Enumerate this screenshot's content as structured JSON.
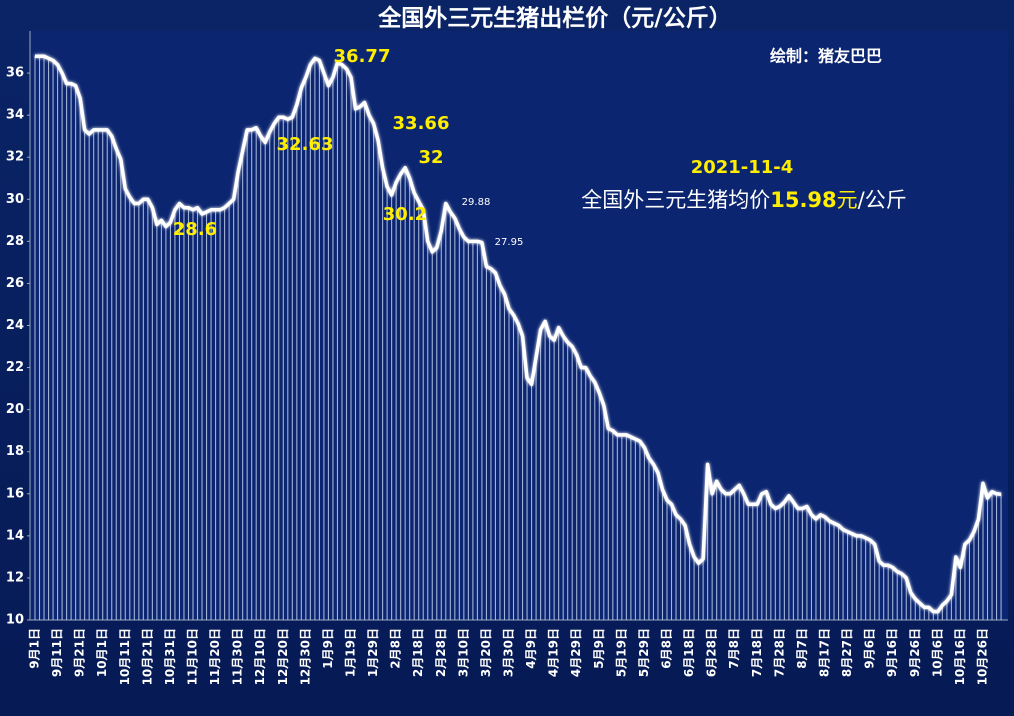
{
  "chart_data": {
    "type": "line",
    "title": "全国外三元生猪出栏价（元/公斤）",
    "credit": "绘制：猪友巴巴",
    "note": {
      "date": "2021-11-4",
      "prefix": "全国外三元生猪均价",
      "price": "15.98",
      "unit": "元",
      "suffix": "/公斤"
    },
    "annotations": [
      "36.77",
      "32.63",
      "33.66",
      "32",
      "30.2",
      "28.6",
      "29.88",
      "27.95"
    ],
    "color": "#ffffff",
    "ylim": [
      10,
      38
    ],
    "yticks": [
      10,
      12,
      14,
      16,
      18,
      20,
      22,
      24,
      26,
      28,
      30,
      32,
      34,
      36
    ],
    "categories": [
      "9月1日",
      null,
      null,
      null,
      null,
      "9月11日",
      null,
      null,
      null,
      null,
      "9月21日",
      null,
      null,
      null,
      null,
      "10月1日",
      null,
      null,
      null,
      null,
      "10月11日",
      null,
      null,
      null,
      null,
      "10月21日",
      null,
      null,
      null,
      null,
      "10月31日",
      null,
      null,
      null,
      null,
      "11月10日",
      null,
      null,
      null,
      null,
      "11月20日",
      null,
      null,
      null,
      null,
      "11月30日",
      null,
      null,
      null,
      null,
      "12月10日",
      null,
      null,
      null,
      null,
      "12月20日",
      null,
      null,
      null,
      null,
      "12月30日",
      null,
      null,
      null,
      null,
      "1月9日",
      null,
      null,
      null,
      null,
      "1月19日",
      null,
      null,
      null,
      null,
      "1月29日",
      null,
      null,
      null,
      null,
      "2月8日",
      null,
      null,
      null,
      null,
      "2月18日",
      null,
      null,
      null,
      null,
      "2月28日",
      null,
      null,
      null,
      null,
      "3月10日",
      null,
      null,
      null,
      null,
      "3月20日",
      null,
      null,
      null,
      null,
      "3月30日",
      null,
      null,
      null,
      null,
      "4月9日",
      null,
      null,
      null,
      null,
      "4月19日",
      null,
      null,
      null,
      null,
      "4月29日",
      null,
      null,
      null,
      null,
      "5月9日",
      null,
      null,
      null,
      null,
      "5月19日",
      null,
      null,
      null,
      null,
      "5月29日",
      null,
      null,
      null,
      null,
      "6月8日",
      null,
      null,
      null,
      null,
      "6月18日",
      null,
      null,
      null,
      null,
      "6月28日",
      null,
      null,
      null,
      null,
      "7月8日",
      null,
      null,
      null,
      null,
      "7月18日",
      null,
      null,
      null,
      null,
      "7月28日",
      null,
      null,
      null,
      null,
      "8月7日",
      null,
      null,
      null,
      null,
      "8月17日",
      null,
      null,
      null,
      null,
      "8月27日",
      null,
      null,
      null,
      null,
      "9月6日",
      null,
      null,
      null,
      null,
      "9月16日",
      null,
      null,
      null,
      null,
      "9月26日",
      null,
      null,
      null,
      null,
      "10月6日",
      null,
      null,
      null,
      null,
      "10月16日",
      null,
      null,
      null,
      null,
      "10月26日",
      null,
      null,
      null,
      null
    ],
    "values": [
      36.8,
      36.8,
      36.8,
      36.7,
      36.6,
      36.4,
      36.0,
      35.5,
      35.5,
      35.4,
      34.8,
      33.3,
      33.1,
      33.3,
      33.3,
      33.3,
      33.3,
      33.0,
      32.4,
      31.9,
      30.5,
      30.1,
      29.8,
      29.8,
      30.0,
      30.0,
      29.6,
      28.8,
      29.0,
      28.7,
      28.9,
      29.5,
      29.8,
      29.6,
      29.6,
      29.5,
      29.6,
      29.3,
      29.4,
      29.5,
      29.5,
      29.5,
      29.6,
      29.8,
      30.0,
      31.3,
      32.3,
      33.3,
      33.3,
      33.4,
      33.0,
      32.7,
      33.2,
      33.6,
      33.9,
      33.9,
      33.8,
      33.9,
      34.5,
      35.3,
      35.8,
      36.4,
      36.7,
      36.6,
      36.0,
      35.4,
      35.8,
      36.5,
      36.4,
      36.2,
      35.8,
      34.3,
      34.4,
      34.6,
      34.0,
      33.6,
      32.8,
      31.5,
      30.6,
      30.2,
      30.8,
      31.2,
      31.5,
      31.0,
      30.3,
      29.9,
      29.5,
      28.0,
      27.5,
      27.7,
      28.5,
      29.8,
      29.4,
      29.1,
      28.6,
      28.2,
      28.0,
      28.0,
      28.0,
      27.95,
      26.8,
      26.7,
      26.5,
      25.9,
      25.5,
      24.8,
      24.5,
      24.1,
      23.5,
      21.5,
      21.2,
      22.5,
      23.8,
      24.2,
      23.5,
      23.3,
      23.9,
      23.5,
      23.2,
      23.0,
      22.6,
      22.0,
      22.0,
      21.6,
      21.3,
      20.8,
      20.2,
      19.1,
      19.0,
      18.8,
      18.8,
      18.8,
      18.7,
      18.6,
      18.5,
      18.2,
      17.7,
      17.4,
      17.0,
      16.2,
      15.7,
      15.5,
      15.0,
      14.8,
      14.5,
      13.6,
      13.0,
      12.7,
      12.9,
      17.4,
      16.0,
      16.6,
      16.2,
      16.0,
      16.0,
      16.2,
      16.4,
      16.0,
      15.5,
      15.5,
      15.5,
      16.0,
      16.1,
      15.5,
      15.3,
      15.4,
      15.6,
      15.9,
      15.6,
      15.3,
      15.3,
      15.4,
      15.0,
      14.8,
      15.0,
      14.9,
      14.7,
      14.6,
      14.5,
      14.3,
      14.2,
      14.1,
      14.0,
      14.0,
      13.9,
      13.8,
      13.6,
      12.8,
      12.6,
      12.6,
      12.5,
      12.3,
      12.2,
      12.0,
      11.3,
      11.0,
      10.8,
      10.6,
      10.6,
      10.4,
      10.4,
      10.7,
      10.9,
      11.2,
      13.0,
      12.5,
      13.6,
      13.8,
      14.2,
      14.8,
      16.5,
      15.8,
      16.1,
      16.0,
      15.98
    ]
  }
}
